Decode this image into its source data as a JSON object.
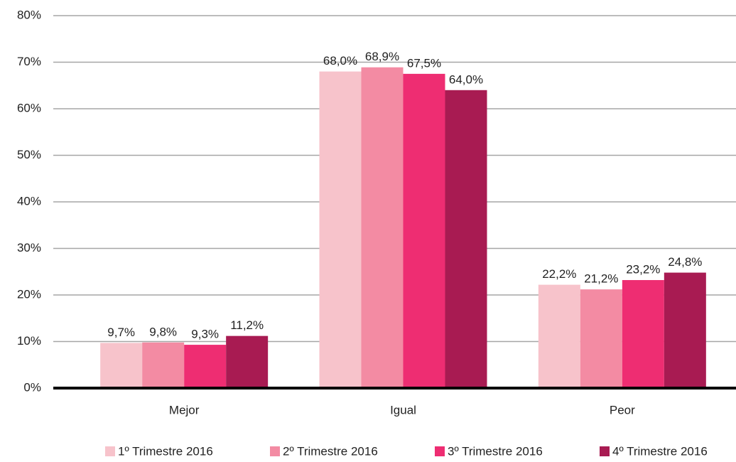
{
  "chart_data": {
    "type": "bar",
    "categories": [
      "Mejor",
      "Igual",
      "Peor"
    ],
    "series": [
      {
        "name": "1º Trimestre 2016",
        "color": "#f7c3cb",
        "values": [
          9.7,
          68.0,
          22.2
        ],
        "value_labels": [
          "9,7%",
          "68,0%",
          "22,2%"
        ]
      },
      {
        "name": "2º Trimestre 2016",
        "color": "#f38ba3",
        "values": [
          9.8,
          68.9,
          21.2
        ],
        "value_labels": [
          "9,8%",
          "68,9%",
          "21,2%"
        ]
      },
      {
        "name": "3º Trimestre 2016",
        "color": "#ee2d72",
        "values": [
          9.3,
          67.5,
          23.2
        ],
        "value_labels": [
          "9,3%",
          "67,5%",
          "23,2%"
        ]
      },
      {
        "name": "4º Trimestre 2016",
        "color": "#a81b52",
        "values": [
          11.2,
          64.0,
          24.8
        ],
        "value_labels": [
          "11,2%",
          "64,0%",
          "24,8%"
        ]
      }
    ],
    "ylim": [
      0,
      80
    ],
    "yticks": [
      {
        "value": 0,
        "label": "0%"
      },
      {
        "value": 10,
        "label": "10%"
      },
      {
        "value": 20,
        "label": "20%"
      },
      {
        "value": 30,
        "label": "30%"
      },
      {
        "value": 40,
        "label": "40%"
      },
      {
        "value": 50,
        "label": "50%"
      },
      {
        "value": 60,
        "label": "60%"
      },
      {
        "value": 70,
        "label": "70%"
      },
      {
        "value": 80,
        "label": "80%"
      }
    ],
    "grid": true
  }
}
